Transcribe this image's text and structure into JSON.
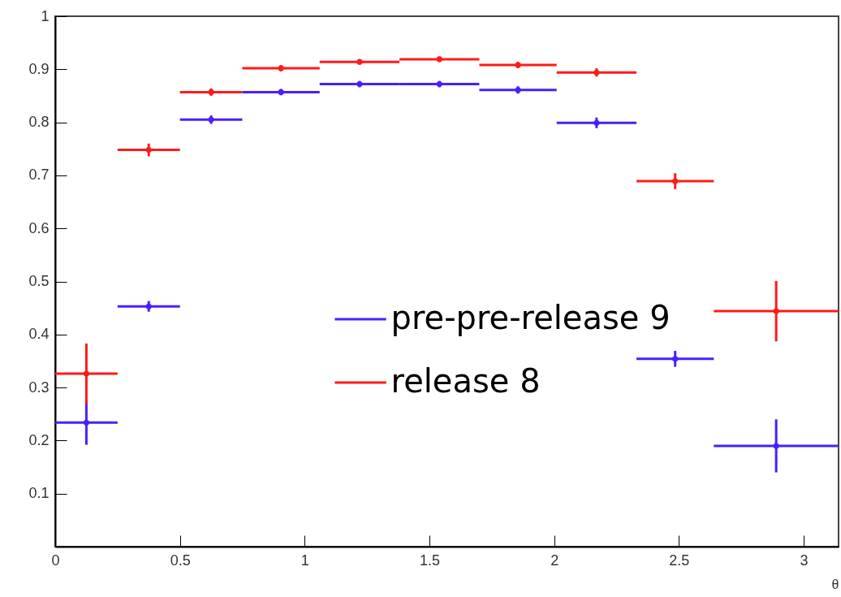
{
  "chart_data": {
    "type": "scatter",
    "xlabel": "θ",
    "x": [
      0.125,
      0.375,
      0.625,
      0.905,
      1.22,
      1.54,
      1.855,
      2.17,
      2.485,
      2.89
    ],
    "series": [
      {
        "name": "pre-pre-release 9",
        "color": "#4a1eff",
        "values": [
          0.234,
          0.453,
          0.805,
          0.857,
          0.872,
          0.872,
          0.861,
          0.799,
          0.354,
          0.19
        ],
        "errors": [
          0.042,
          0.01,
          0.008,
          0.006,
          0.006,
          0.006,
          0.007,
          0.01,
          0.015,
          0.05
        ],
        "xerrors": [
          0.125,
          0.125,
          0.125,
          0.155,
          0.16,
          0.16,
          0.155,
          0.16,
          0.155,
          0.25
        ]
      },
      {
        "name": "release 8",
        "color": "#ff1a1a",
        "values": [
          0.326,
          0.748,
          0.857,
          0.902,
          0.914,
          0.919,
          0.908,
          0.894,
          0.689,
          0.444
        ],
        "errors": [
          0.057,
          0.012,
          0.007,
          0.006,
          0.005,
          0.005,
          0.006,
          0.008,
          0.015,
          0.057
        ],
        "xerrors": [
          0.125,
          0.125,
          0.125,
          0.155,
          0.16,
          0.16,
          0.155,
          0.16,
          0.155,
          0.25
        ]
      }
    ],
    "xlim": [
      0,
      3.14
    ],
    "ylim": [
      0,
      1
    ],
    "xticks": [
      0,
      0.5,
      1,
      1.5,
      2,
      2.5,
      3
    ],
    "yticks": [
      0.1,
      0.2,
      0.3,
      0.4,
      0.5,
      0.6,
      0.7,
      0.8,
      0.9,
      1
    ],
    "marker": "circle",
    "grid": false,
    "legend": "right"
  }
}
